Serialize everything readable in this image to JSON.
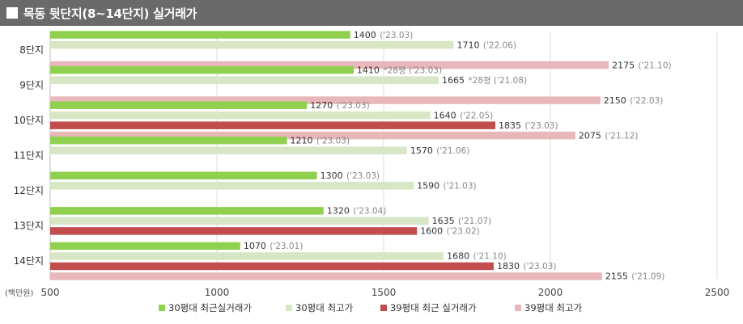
{
  "header": {
    "title": "목동 뒷단지(8~14단지) 실거래가"
  },
  "colors": {
    "s30recent": "#8fd14f",
    "s30max": "#d7e6c4",
    "s39recent": "#c24d4d",
    "s39max": "#e8b7b9",
    "grid": "#dddddd",
    "label": "#555555",
    "date": "#888888"
  },
  "chart_data": {
    "type": "bar",
    "orientation": "horizontal",
    "unit_label": "(백만원)",
    "xlim": [
      500,
      2500
    ],
    "x_ticks": [
      "500",
      "1000",
      "1500",
      "2000",
      "2500"
    ],
    "grid": true,
    "legend_position": "bottom",
    "categories": [
      "8단지",
      "9단지",
      "10단지",
      "11단지",
      "12단지",
      "13단지",
      "14단지"
    ],
    "series": [
      {
        "name": "30평대 최근실거래가",
        "values": [
          1400,
          1410,
          1270,
          1210,
          1300,
          1320,
          1070
        ],
        "labels": [
          "1400",
          "1410",
          "1270",
          "1210",
          "1300",
          "1320",
          "1070"
        ],
        "notes": [
          "('23.03)",
          "*28평 ('23.03)",
          "('23.03)",
          "('23.03)",
          "('23.03)",
          "('23.04)",
          "('23.01)"
        ]
      },
      {
        "name": "30평대 최고가",
        "values": [
          1710,
          1665,
          1640,
          1570,
          1590,
          1635,
          1680
        ],
        "labels": [
          "1710",
          "1665",
          "1640",
          "1570",
          "1590",
          "1635",
          "1680"
        ],
        "notes": [
          "('22.06)",
          "*28평 ('21.08)",
          "('22.05)",
          "('21.06)",
          "('21.03)",
          "('21.07)",
          "('21.10)"
        ]
      },
      {
        "name": "39평대 최근 실거래가",
        "values": [
          null,
          null,
          1835,
          null,
          null,
          1600,
          1830
        ],
        "labels": [
          null,
          null,
          "1835",
          null,
          null,
          "1600",
          "1830"
        ],
        "notes": [
          null,
          null,
          "('23.03)",
          null,
          null,
          "('23.02)",
          "('23.03)"
        ]
      },
      {
        "name": "39평대 최고가",
        "values": [
          2175,
          2150,
          2075,
          null,
          null,
          null,
          2155
        ],
        "labels": [
          "2175",
          "2150",
          "2075",
          null,
          null,
          null,
          "2155"
        ],
        "notes": [
          "('21.10)",
          "('22.03)",
          "('21.12)",
          null,
          null,
          null,
          "('21.09)"
        ]
      }
    ]
  }
}
